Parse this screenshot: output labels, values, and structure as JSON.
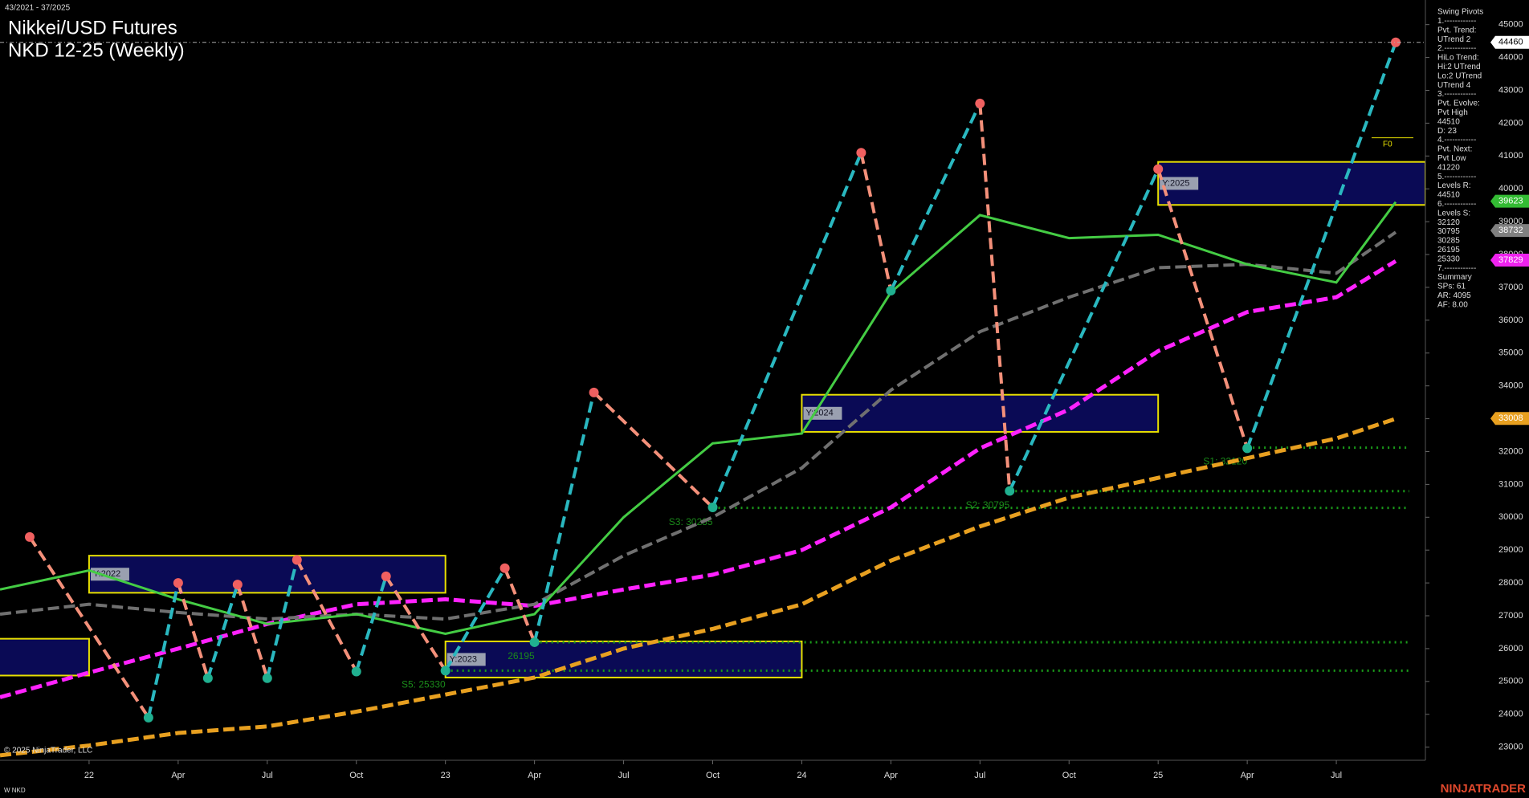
{
  "header": {
    "range": "43/2021 - 37/2025",
    "title": "Nikkei/USD Futures",
    "subtitle": "NKD 12-25 (Weekly)"
  },
  "chart_data": {
    "type": "line",
    "xlim": [
      "2021-10",
      "2025-10"
    ],
    "ylim": [
      22600,
      45750
    ],
    "yticks": [
      23000,
      24000,
      25000,
      26000,
      27000,
      28000,
      29000,
      30000,
      31000,
      32000,
      33000,
      34000,
      35000,
      36000,
      37000,
      38000,
      39000,
      40000,
      41000,
      42000,
      43000,
      44000,
      45000
    ],
    "xticks": [
      {
        "value": "2022-01",
        "label": "22"
      },
      {
        "value": "2022-04",
        "label": "Apr"
      },
      {
        "value": "2022-07",
        "label": "Jul"
      },
      {
        "value": "2022-10",
        "label": "Oct"
      },
      {
        "value": "2023-01",
        "label": "23"
      },
      {
        "value": "2023-04",
        "label": "Apr"
      },
      {
        "value": "2023-07",
        "label": "Jul"
      },
      {
        "value": "2023-10",
        "label": "Oct"
      },
      {
        "value": "2024-01",
        "label": "24"
      },
      {
        "value": "2024-04",
        "label": "Apr"
      },
      {
        "value": "2024-07",
        "label": "Jul"
      },
      {
        "value": "2024-10",
        "label": "Oct"
      },
      {
        "value": "2025-01",
        "label": "25"
      },
      {
        "value": "2025-04",
        "label": "Apr"
      },
      {
        "value": "2025-07",
        "label": "Jul"
      }
    ],
    "x": [
      "2021-10",
      "2022-01",
      "2022-04",
      "2022-07",
      "2022-10",
      "2023-01",
      "2023-04",
      "2023-07",
      "2023-10",
      "2024-01",
      "2024-04",
      "2024-07",
      "2024-10",
      "2025-01",
      "2025-04",
      "2025-07",
      "2025-09"
    ],
    "series": [
      {
        "color": "#e8a020",
        "values": [
          22750,
          23050,
          23430,
          23630,
          24080,
          24600,
          25120,
          26000,
          26600,
          27350,
          28680,
          29720,
          30600,
          31200,
          31800,
          32400,
          33000
        ]
      },
      {
        "color": "#ff22ff",
        "values": [
          24520,
          25270,
          26000,
          26750,
          27350,
          27500,
          27300,
          27800,
          28250,
          29000,
          30300,
          32100,
          33280,
          35060,
          36250,
          36700,
          37800
        ]
      },
      {
        "color": "#707070",
        "values": [
          27050,
          27350,
          27100,
          26900,
          27050,
          26900,
          27350,
          28830,
          30000,
          31500,
          33870,
          35650,
          36700,
          37600,
          37700,
          37430,
          38680
        ]
      },
      {
        "color": "#44cc44",
        "values": [
          27800,
          28380,
          27500,
          26750,
          27050,
          26450,
          27050,
          30000,
          32250,
          32550,
          36850,
          39200,
          38500,
          38600,
          37700,
          37150,
          39600
        ]
      }
    ],
    "pivots": {
      "x": [
        "2021-11",
        "2022-03",
        "2022-04",
        "2022-05",
        "2022-06",
        "2022-07",
        "2022-08",
        "2022-10",
        "2022-11",
        "2023-01",
        "2023-03",
        "2023-04",
        "2023-06",
        "2023-10",
        "2024-03",
        "2024-04",
        "2024-07",
        "2024-08",
        "2025-01",
        "2025-04",
        "2025-09"
      ],
      "values": [
        29400,
        23900,
        28000,
        25100,
        27950,
        25100,
        28700,
        25300,
        28200,
        25330,
        28450,
        26195,
        33800,
        30300,
        41100,
        36900,
        42600,
        30800,
        40600,
        32100,
        44460
      ],
      "up_color": "#2ab8c0",
      "down_color": "#f4907a",
      "high_color": "#f06060",
      "low_color": "#20b090"
    },
    "levels": [
      {
        "value": 32120,
        "label": "S1: 32120",
        "from": "2025-04"
      },
      {
        "value": 30795,
        "label": "S2: 30795",
        "from": "2024-08"
      },
      {
        "value": 30285,
        "label": "S3: 30285",
        "from": "2023-10"
      },
      {
        "value": 26195,
        "label": "26195",
        "from": "2023-04"
      },
      {
        "value": 25330,
        "label": "S5: 25330",
        "from": "2023-01"
      }
    ],
    "year_boxes": [
      {
        "from": "2021-01",
        "to": "2021-12",
        "high": 26300,
        "low": 25180
      },
      {
        "label": "Y:2022",
        "from": "2022-01",
        "to": "2022-12",
        "high": 28830,
        "low": 27700
      },
      {
        "label": "Y:2023",
        "from": "2023-01",
        "to": "2023-12",
        "high": 26220,
        "low": 25120
      },
      {
        "label": "Y:2024",
        "from": "2024-01",
        "to": "2024-12",
        "high": 33730,
        "low": 32600
      },
      {
        "label": "Y:2025",
        "from": "2025-01",
        "to": "2025-09",
        "high": 40820,
        "low": 39510
      }
    ],
    "forecast_label": "F0",
    "price_tags": [
      {
        "value": 44460,
        "color": "#ffffff"
      },
      {
        "value": 39623,
        "color": "#33bb33"
      },
      {
        "value": 38732,
        "color": "#808080"
      },
      {
        "value": 37829,
        "color": "#ee22ee"
      },
      {
        "value": 33008,
        "color": "#e8a020"
      }
    ]
  },
  "info_panel": [
    "Swing Pivots",
    "1.------------",
    "Pvt. Trend:",
    "UTrend 2",
    "2.------------",
    "HiLo Trend:",
    "Hi:2 UTrend",
    "Lo:2 UTrend",
    "UTrend 4",
    "3.------------",
    "Pvt. Evolve:",
    "Pvt High",
    "44510",
    "D: 23",
    "4.------------",
    "Pvt. Next:",
    "Pvt Low",
    "41220",
    "5.------------",
    "Levels R:",
    "44510",
    "6.------------",
    "Levels S:",
    "32120",
    "30795",
    "30285",
    "26195",
    "25330",
    "7.------------",
    "Summary",
    "SPs: 61",
    "AR: 4095",
    "AF: 8.00"
  ],
  "footer": {
    "copyright": "© 2025 NinjaTrader, LLC",
    "symbol": "W NKD",
    "brand": "NINJATRADER"
  }
}
